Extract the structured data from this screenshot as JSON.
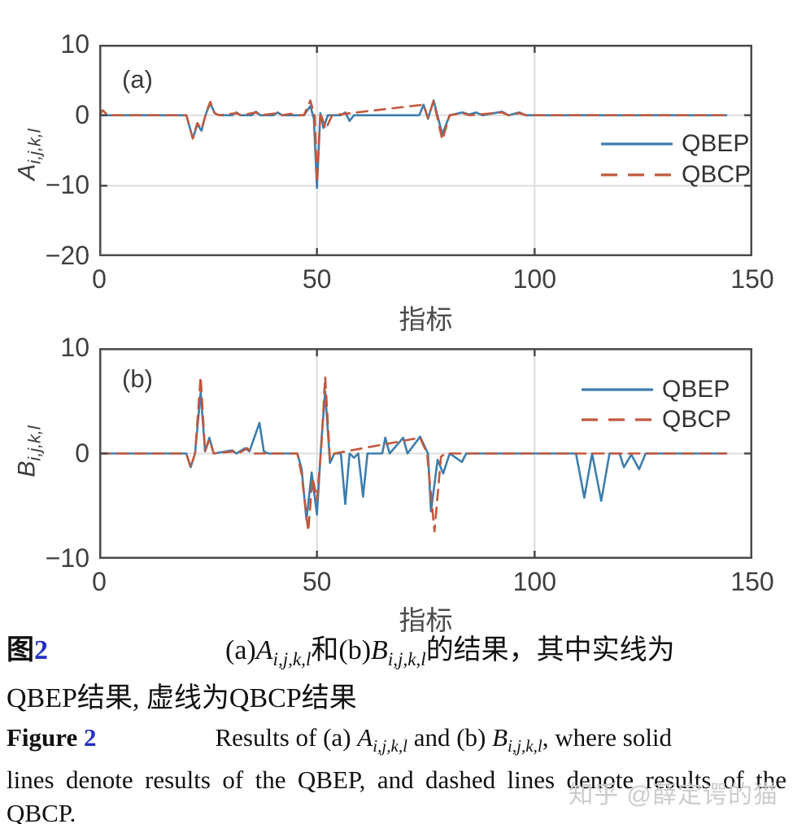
{
  "watermark": "知乎 @薛定谔的猫",
  "colors": {
    "qbep_blue": "#3d7ead",
    "qbcp_orange": "#c1583c",
    "grid_gray": "#dcdcdc",
    "axis_gray": "#4a4a4a",
    "caption_number_blue": "#2130c2",
    "watermark_gray": "#cccccc"
  },
  "captions": {
    "zh": {
      "label": "图",
      "number": "2",
      "part1": "(a)",
      "var_a": "A",
      "sub_a": "i,j,k,l",
      "part2": "和(b)",
      "var_b": "B",
      "sub_b": "i,j,k,l",
      "part3": "的结果，其中实线为",
      "line2": "QBEP结果, 虚线为QBCP结果"
    },
    "en": {
      "label": "Figure",
      "number": "2",
      "line1_pre": "Results of (a) ",
      "var_a": "A",
      "sub_a": "i,j,k,l",
      "line1_mid": " and (b) ",
      "var_b": "B",
      "sub_b": "i,j,k,l",
      "line1_post": ", where solid",
      "line2": "lines denote results of the QBEP, and dashed lines denote results of the",
      "line3": "QBCP."
    }
  },
  "chart_data": [
    {
      "type": "line",
      "panel_label": "(a)",
      "xlabel": "指标",
      "ylabel_var": "A",
      "ylabel_sub": "i,j,k,l",
      "xlim": [
        0,
        150
      ],
      "ylim": [
        -20,
        10
      ],
      "xtick_vals": [
        0,
        50,
        100,
        150
      ],
      "xtick_labels": [
        "0",
        "50",
        "100",
        "150"
      ],
      "ytick_vals": [
        10,
        0,
        -10,
        -20
      ],
      "ytick_labels": [
        "10",
        "0",
        "−10",
        "−20"
      ],
      "grid": true,
      "legend_position": "right-middle",
      "series": [
        {
          "name": "QBEP",
          "style": "solid",
          "color": "#3d7ead",
          "points": [
            [
              0,
              0
            ],
            [
              20,
              0
            ],
            [
              21.5,
              -3.3
            ],
            [
              22.5,
              -1.3
            ],
            [
              23.5,
              -2.2
            ],
            [
              24.5,
              0.2
            ],
            [
              25.5,
              1.7
            ],
            [
              26.5,
              0.3
            ],
            [
              27.5,
              0
            ],
            [
              30.5,
              0
            ],
            [
              31.5,
              0.4
            ],
            [
              32.5,
              0
            ],
            [
              35,
              0
            ],
            [
              36,
              0.5
            ],
            [
              37,
              0
            ],
            [
              40,
              0
            ],
            [
              41,
              0.4
            ],
            [
              42,
              0
            ],
            [
              47,
              0
            ],
            [
              48.5,
              1.3
            ],
            [
              49.3,
              -0.5
            ],
            [
              50,
              -10.3
            ],
            [
              50.8,
              0.3
            ],
            [
              51.5,
              -1.8
            ],
            [
              52.5,
              0
            ],
            [
              55.5,
              0
            ],
            [
              56.5,
              0.4
            ],
            [
              57.5,
              -0.8
            ],
            [
              58.5,
              0
            ],
            [
              73.5,
              0
            ],
            [
              74.5,
              1.5
            ],
            [
              75.5,
              -0.5
            ],
            [
              76.8,
              2.1
            ],
            [
              78.8,
              -2.7
            ],
            [
              80.5,
              0
            ],
            [
              83.5,
              0.4
            ],
            [
              85,
              0.1
            ],
            [
              86.5,
              0.4
            ],
            [
              88,
              0
            ],
            [
              92.5,
              0.5
            ],
            [
              94,
              0
            ],
            [
              96.5,
              0.4
            ],
            [
              98,
              0
            ],
            [
              144,
              0
            ]
          ]
        },
        {
          "name": "QBCP",
          "style": "dashed",
          "color": "#c1583c",
          "points": [
            [
              0,
              0
            ],
            [
              0.8,
              0.7
            ],
            [
              2,
              0
            ],
            [
              20,
              0
            ],
            [
              21.5,
              -3.3
            ],
            [
              22.5,
              -1.1
            ],
            [
              23.5,
              -2.0
            ],
            [
              24.5,
              0.3
            ],
            [
              25.5,
              1.9
            ],
            [
              26.5,
              0.3
            ],
            [
              27.5,
              0
            ],
            [
              31.5,
              0.3
            ],
            [
              32.5,
              0
            ],
            [
              36,
              0.4
            ],
            [
              37,
              0
            ],
            [
              41,
              0.3
            ],
            [
              42,
              0
            ],
            [
              44,
              0.2
            ],
            [
              45,
              0
            ],
            [
              47,
              0
            ],
            [
              48.5,
              2.1
            ],
            [
              49.5,
              -0.2
            ],
            [
              50,
              -9.6
            ],
            [
              50.8,
              0.4
            ],
            [
              52,
              -2.0
            ],
            [
              53.5,
              0
            ],
            [
              74.5,
              1.5
            ],
            [
              75.5,
              -0.4
            ],
            [
              76.8,
              2.0
            ],
            [
              78.8,
              -3.5
            ],
            [
              80.5,
              0
            ],
            [
              83.5,
              0.3
            ],
            [
              85,
              0
            ],
            [
              92.5,
              0.4
            ],
            [
              94,
              0
            ],
            [
              96.5,
              0.3
            ],
            [
              98,
              0
            ],
            [
              144,
              0
            ]
          ]
        }
      ]
    },
    {
      "type": "line",
      "panel_label": "(b)",
      "xlabel": "指标",
      "ylabel_var": "B",
      "ylabel_sub": "i,j,k,l",
      "xlim": [
        0,
        150
      ],
      "ylim": [
        -10,
        10
      ],
      "xtick_vals": [
        0,
        50,
        100,
        150
      ],
      "xtick_labels": [
        "0",
        "50",
        "100",
        "150"
      ],
      "ytick_vals": [
        10,
        0,
        -10
      ],
      "ytick_labels": [
        "10",
        "0",
        "−10"
      ],
      "grid": true,
      "legend_position": "top-right",
      "series": [
        {
          "name": "QBEP",
          "style": "solid",
          "color": "#3d7ead",
          "points": [
            [
              0,
              0
            ],
            [
              20,
              0
            ],
            [
              21,
              -1.3
            ],
            [
              22,
              0
            ],
            [
              23.3,
              5.8
            ],
            [
              24.3,
              0.2
            ],
            [
              25.3,
              1.5
            ],
            [
              26.3,
              0
            ],
            [
              30.5,
              0.3
            ],
            [
              31.5,
              0
            ],
            [
              33.5,
              0.5
            ],
            [
              34.5,
              0.2
            ],
            [
              36.8,
              2.9
            ],
            [
              37.8,
              0.2
            ],
            [
              38.8,
              0
            ],
            [
              45.5,
              0
            ],
            [
              46.5,
              -1.5
            ],
            [
              47.6,
              -6.3
            ],
            [
              48.8,
              -1.8
            ],
            [
              50,
              -5.8
            ],
            [
              51,
              1.0
            ],
            [
              51.9,
              5.9
            ],
            [
              53,
              -0.9
            ],
            [
              54,
              0
            ],
            [
              55.5,
              0
            ],
            [
              56.5,
              -4.8
            ],
            [
              57.5,
              0
            ],
            [
              58.5,
              -0.4
            ],
            [
              59.5,
              0
            ],
            [
              60.6,
              -4.1
            ],
            [
              61.6,
              0
            ],
            [
              65,
              0
            ],
            [
              65.7,
              1.5
            ],
            [
              66.7,
              0
            ],
            [
              69.8,
              1.5
            ],
            [
              70.8,
              0
            ],
            [
              73.7,
              1.6
            ],
            [
              75.5,
              0
            ],
            [
              76.2,
              -5.5
            ],
            [
              77.7,
              -0.6
            ],
            [
              79,
              -1.9
            ],
            [
              80.5,
              0
            ],
            [
              83.3,
              -0.8
            ],
            [
              84.3,
              0
            ],
            [
              109.5,
              0
            ],
            [
              111.4,
              -4.2
            ],
            [
              113.2,
              0
            ],
            [
              115.3,
              -4.5
            ],
            [
              117.2,
              0
            ],
            [
              119.5,
              0
            ],
            [
              120.5,
              -1.3
            ],
            [
              122.2,
              -0.1
            ],
            [
              124,
              -1.5
            ],
            [
              125.5,
              0
            ],
            [
              144,
              0
            ]
          ]
        },
        {
          "name": "QBCP",
          "style": "dashed",
          "color": "#c1583c",
          "points": [
            [
              0,
              0
            ],
            [
              20,
              0
            ],
            [
              21,
              -1.3
            ],
            [
              22,
              0
            ],
            [
              23.3,
              7.3
            ],
            [
              24.3,
              0.2
            ],
            [
              25.3,
              1.3
            ],
            [
              26.3,
              0
            ],
            [
              31,
              0.2
            ],
            [
              32,
              0
            ],
            [
              34,
              0.5
            ],
            [
              35,
              0
            ],
            [
              45.5,
              0
            ],
            [
              46.5,
              -2.0
            ],
            [
              48,
              -7.4
            ],
            [
              49,
              -2.3
            ],
            [
              50,
              -4.4
            ],
            [
              51,
              0.5
            ],
            [
              51.9,
              7.3
            ],
            [
              53,
              -0.6
            ],
            [
              54,
              0
            ],
            [
              73.7,
              1.5
            ],
            [
              75.3,
              0
            ],
            [
              77,
              -7.4
            ],
            [
              78.5,
              -0.3
            ],
            [
              79.5,
              0
            ],
            [
              144,
              0
            ]
          ]
        }
      ]
    }
  ]
}
